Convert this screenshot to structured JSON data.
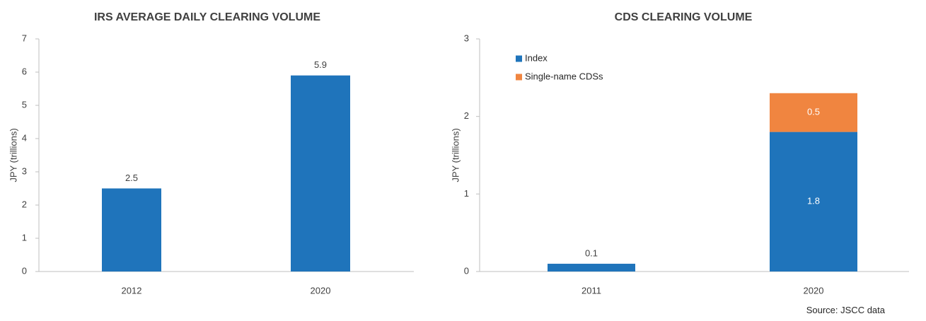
{
  "source": "Source: JSCC data",
  "chart_data": [
    {
      "type": "bar",
      "title": "IRS AVERAGE DAILY CLEARING VOLUME",
      "xlabel": "",
      "ylabel": "JPY (trillions)",
      "ylim": [
        0,
        7
      ],
      "yticks": [
        0,
        1,
        2,
        3,
        4,
        5,
        6,
        7
      ],
      "categories": [
        "2012",
        "2020"
      ],
      "series": [
        {
          "values": [
            2.5,
            5.9
          ],
          "color": "#1f74bb"
        }
      ],
      "data_labels": [
        [
          "2.5",
          "5.9"
        ]
      ],
      "grid": false,
      "legend": false
    },
    {
      "type": "bar",
      "stacked": true,
      "title": "CDS CLEARING VOLUME",
      "xlabel": "",
      "ylabel": "JPY (trillions)",
      "ylim": [
        0,
        3
      ],
      "yticks": [
        0,
        1,
        2,
        3
      ],
      "categories": [
        "2011",
        "2020"
      ],
      "series": [
        {
          "name": "Index",
          "values": [
            0.1,
            1.8
          ],
          "color": "#1f74bb"
        },
        {
          "name": "Single-name CDSs",
          "values": [
            0,
            0.5
          ],
          "color": "#f08540"
        }
      ],
      "data_labels": [
        [
          "0.1",
          "1.8"
        ],
        [
          "",
          "0.5"
        ]
      ],
      "grid": false,
      "legend": "top-left"
    }
  ]
}
